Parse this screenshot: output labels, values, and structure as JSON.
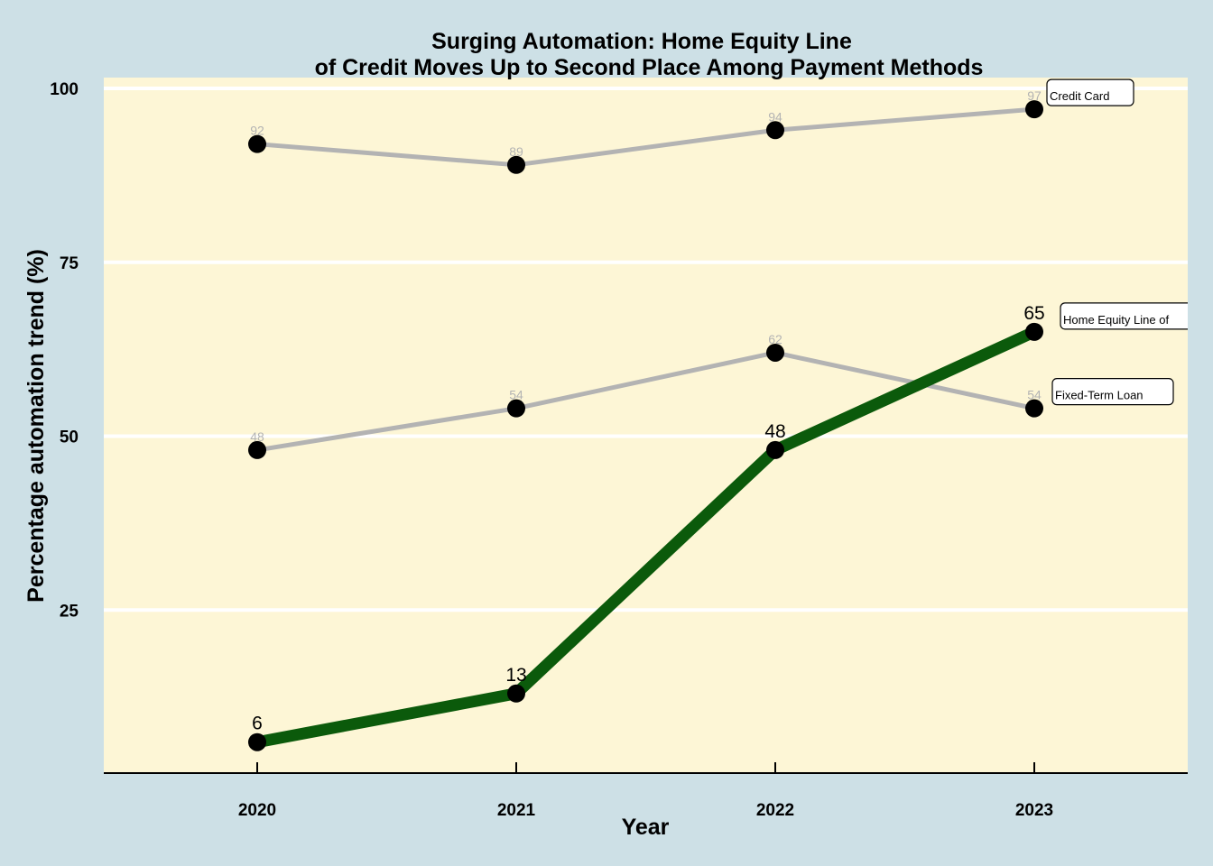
{
  "chart_data": {
    "type": "line",
    "title_lines": [
      "Surging Automation: Home Equity Line",
      "of Credit Moves Up to Second Place Among Payment Methods"
    ],
    "xlabel": "Year",
    "ylabel": "Percentage automation trend (%)",
    "categories": [
      "2020",
      "2021",
      "2022",
      "2023"
    ],
    "yticks": [
      25,
      50,
      75,
      100
    ],
    "ylim": [
      0,
      100
    ],
    "background_color": "#cde0e6",
    "panel_color": "#fdf6d6",
    "series": [
      {
        "name": "Credit Card",
        "tag": "Credit Card",
        "values": [
          92,
          89,
          94,
          97
        ],
        "color": "#b3b3b3",
        "highlight": false
      },
      {
        "name": "Fixed-Term Loan",
        "tag": "Fixed-Term Loan",
        "values": [
          48,
          54,
          62,
          54
        ],
        "color": "#b3b3b3",
        "highlight": false
      },
      {
        "name": "Home Equity Line of Credit",
        "tag": "Home Equity Line of",
        "values": [
          6,
          13,
          48,
          65
        ],
        "color": "#0b5a0b",
        "highlight": true
      }
    ]
  }
}
